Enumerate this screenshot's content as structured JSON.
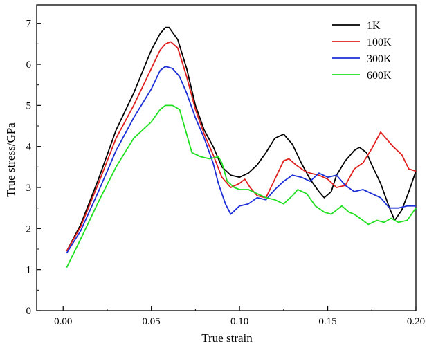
{
  "chart_data": {
    "type": "line",
    "xlabel": "True strain",
    "ylabel": "True stress/GPa",
    "xlim": [
      -0.015,
      0.2
    ],
    "ylim": [
      0,
      7.45
    ],
    "x_ticks": [
      "0.00",
      "0.05",
      "0.10",
      "0.15",
      "0.20"
    ],
    "x_tick_values": [
      0,
      0.05,
      0.1,
      0.15,
      0.2
    ],
    "y_ticks": [
      "0",
      "1",
      "2",
      "3",
      "4",
      "5",
      "6",
      "7"
    ],
    "y_tick_values": [
      0,
      1,
      2,
      3,
      4,
      5,
      6,
      7
    ],
    "grid": false,
    "legend_position": "top-right",
    "series": [
      {
        "name": "1K",
        "color": "#000000",
        "points": [
          [
            0.002,
            1.45
          ],
          [
            0.01,
            2.1
          ],
          [
            0.02,
            3.2
          ],
          [
            0.03,
            4.4
          ],
          [
            0.04,
            5.3
          ],
          [
            0.05,
            6.35
          ],
          [
            0.055,
            6.75
          ],
          [
            0.058,
            6.9
          ],
          [
            0.06,
            6.9
          ],
          [
            0.065,
            6.6
          ],
          [
            0.07,
            5.9
          ],
          [
            0.075,
            5.0
          ],
          [
            0.08,
            4.4
          ],
          [
            0.085,
            4.0
          ],
          [
            0.09,
            3.5
          ],
          [
            0.095,
            3.3
          ],
          [
            0.1,
            3.25
          ],
          [
            0.105,
            3.35
          ],
          [
            0.11,
            3.55
          ],
          [
            0.115,
            3.85
          ],
          [
            0.12,
            4.2
          ],
          [
            0.125,
            4.3
          ],
          [
            0.13,
            4.05
          ],
          [
            0.135,
            3.6
          ],
          [
            0.14,
            3.2
          ],
          [
            0.145,
            2.9
          ],
          [
            0.148,
            2.75
          ],
          [
            0.152,
            2.9
          ],
          [
            0.155,
            3.3
          ],
          [
            0.16,
            3.65
          ],
          [
            0.165,
            3.9
          ],
          [
            0.168,
            3.98
          ],
          [
            0.172,
            3.85
          ],
          [
            0.175,
            3.55
          ],
          [
            0.18,
            3.1
          ],
          [
            0.185,
            2.5
          ],
          [
            0.188,
            2.2
          ],
          [
            0.192,
            2.45
          ],
          [
            0.196,
            2.9
          ],
          [
            0.2,
            3.4
          ]
        ]
      },
      {
        "name": "100K",
        "color": "#e0201e",
        "points": [
          [
            0.002,
            1.45
          ],
          [
            0.01,
            2.05
          ],
          [
            0.02,
            3.1
          ],
          [
            0.03,
            4.2
          ],
          [
            0.04,
            5.0
          ],
          [
            0.05,
            5.9
          ],
          [
            0.055,
            6.35
          ],
          [
            0.058,
            6.5
          ],
          [
            0.061,
            6.55
          ],
          [
            0.065,
            6.4
          ],
          [
            0.07,
            5.7
          ],
          [
            0.075,
            4.9
          ],
          [
            0.08,
            4.3
          ],
          [
            0.085,
            3.8
          ],
          [
            0.09,
            3.25
          ],
          [
            0.095,
            3.0
          ],
          [
            0.1,
            3.1
          ],
          [
            0.103,
            3.2
          ],
          [
            0.106,
            3.0
          ],
          [
            0.11,
            2.8
          ],
          [
            0.115,
            2.75
          ],
          [
            0.12,
            3.2
          ],
          [
            0.125,
            3.65
          ],
          [
            0.128,
            3.7
          ],
          [
            0.132,
            3.55
          ],
          [
            0.137,
            3.4
          ],
          [
            0.14,
            3.35
          ],
          [
            0.145,
            3.3
          ],
          [
            0.15,
            3.2
          ],
          [
            0.155,
            3.0
          ],
          [
            0.16,
            3.05
          ],
          [
            0.165,
            3.45
          ],
          [
            0.17,
            3.6
          ],
          [
            0.175,
            3.95
          ],
          [
            0.18,
            4.35
          ],
          [
            0.183,
            4.2
          ],
          [
            0.187,
            4.0
          ],
          [
            0.192,
            3.8
          ],
          [
            0.196,
            3.45
          ],
          [
            0.2,
            3.4
          ]
        ]
      },
      {
        "name": "300K",
        "color": "#1c2fd6",
        "points": [
          [
            0.002,
            1.4
          ],
          [
            0.01,
            1.95
          ],
          [
            0.02,
            2.9
          ],
          [
            0.03,
            3.9
          ],
          [
            0.04,
            4.7
          ],
          [
            0.05,
            5.4
          ],
          [
            0.055,
            5.85
          ],
          [
            0.058,
            5.95
          ],
          [
            0.062,
            5.9
          ],
          [
            0.066,
            5.7
          ],
          [
            0.07,
            5.3
          ],
          [
            0.075,
            4.7
          ],
          [
            0.08,
            4.2
          ],
          [
            0.085,
            3.6
          ],
          [
            0.088,
            3.1
          ],
          [
            0.092,
            2.6
          ],
          [
            0.095,
            2.35
          ],
          [
            0.1,
            2.55
          ],
          [
            0.105,
            2.6
          ],
          [
            0.11,
            2.75
          ],
          [
            0.115,
            2.7
          ],
          [
            0.12,
            2.95
          ],
          [
            0.125,
            3.15
          ],
          [
            0.13,
            3.3
          ],
          [
            0.135,
            3.25
          ],
          [
            0.14,
            3.15
          ],
          [
            0.145,
            3.35
          ],
          [
            0.15,
            3.25
          ],
          [
            0.155,
            3.3
          ],
          [
            0.16,
            3.05
          ],
          [
            0.165,
            2.9
          ],
          [
            0.17,
            2.95
          ],
          [
            0.175,
            2.85
          ],
          [
            0.18,
            2.75
          ],
          [
            0.185,
            2.5
          ],
          [
            0.19,
            2.5
          ],
          [
            0.195,
            2.55
          ],
          [
            0.2,
            2.55
          ]
        ]
      },
      {
        "name": "600K",
        "color": "#1fe01f",
        "points": [
          [
            0.002,
            1.05
          ],
          [
            0.01,
            1.75
          ],
          [
            0.02,
            2.65
          ],
          [
            0.03,
            3.5
          ],
          [
            0.04,
            4.2
          ],
          [
            0.05,
            4.6
          ],
          [
            0.055,
            4.9
          ],
          [
            0.058,
            5.0
          ],
          [
            0.062,
            5.0
          ],
          [
            0.066,
            4.9
          ],
          [
            0.07,
            4.3
          ],
          [
            0.073,
            3.85
          ],
          [
            0.078,
            3.75
          ],
          [
            0.083,
            3.7
          ],
          [
            0.088,
            3.75
          ],
          [
            0.09,
            3.6
          ],
          [
            0.093,
            3.15
          ],
          [
            0.097,
            3.0
          ],
          [
            0.1,
            2.95
          ],
          [
            0.105,
            2.95
          ],
          [
            0.11,
            2.85
          ],
          [
            0.115,
            2.75
          ],
          [
            0.12,
            2.7
          ],
          [
            0.125,
            2.6
          ],
          [
            0.13,
            2.8
          ],
          [
            0.133,
            2.95
          ],
          [
            0.138,
            2.85
          ],
          [
            0.143,
            2.55
          ],
          [
            0.148,
            2.4
          ],
          [
            0.152,
            2.35
          ],
          [
            0.158,
            2.55
          ],
          [
            0.162,
            2.4
          ],
          [
            0.165,
            2.35
          ],
          [
            0.17,
            2.2
          ],
          [
            0.173,
            2.1
          ],
          [
            0.178,
            2.2
          ],
          [
            0.182,
            2.15
          ],
          [
            0.186,
            2.25
          ],
          [
            0.19,
            2.15
          ],
          [
            0.195,
            2.2
          ],
          [
            0.2,
            2.5
          ]
        ]
      }
    ]
  }
}
